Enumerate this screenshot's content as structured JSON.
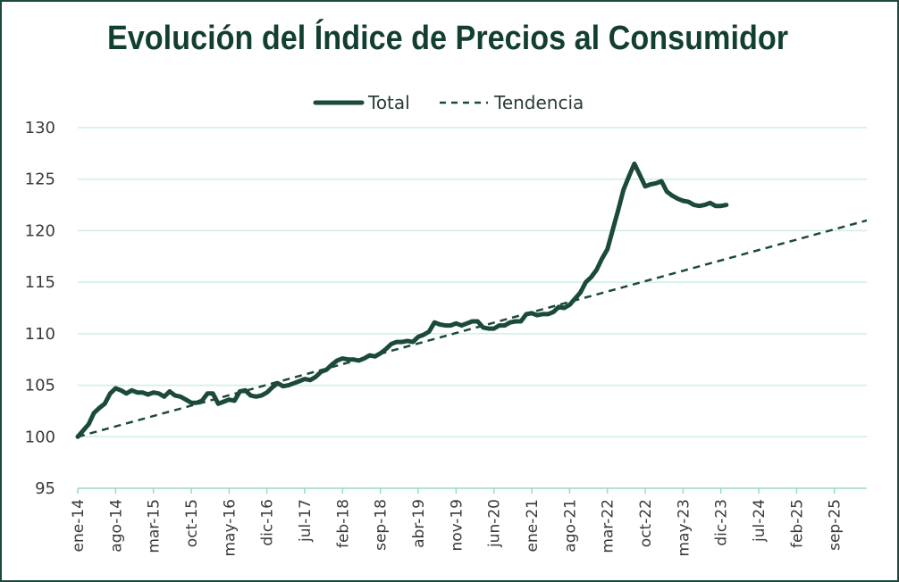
{
  "chart_data": {
    "type": "line",
    "title": "Evolución del Índice de Precios al Consumidor",
    "xlabel": "",
    "ylabel": "",
    "ylim": [
      95,
      130
    ],
    "yticks": [
      95,
      100,
      105,
      110,
      115,
      120,
      125,
      130
    ],
    "grid": true,
    "legend_position": "top-center",
    "x_tick_labels": [
      "ene-14",
      "ago-14",
      "mar-15",
      "oct-15",
      "may-16",
      "dic-16",
      "jul-17",
      "feb-18",
      "sep-18",
      "abr-19",
      "nov-19",
      "jun-20",
      "ene-21",
      "ago-21",
      "mar-22",
      "oct-22",
      "may-23",
      "dic-23",
      "jul-24",
      "feb-25",
      "sep-25"
    ],
    "x_months_range": [
      0,
      146
    ],
    "series": [
      {
        "name": "Total",
        "style": "solid",
        "color": "#1b4a3c",
        "points": [
          [
            0,
            100.0
          ],
          [
            1,
            100.6
          ],
          [
            2,
            101.2
          ],
          [
            3,
            102.3
          ],
          [
            4,
            102.8
          ],
          [
            5,
            103.2
          ],
          [
            6,
            104.2
          ],
          [
            7,
            104.7
          ],
          [
            8,
            104.5
          ],
          [
            9,
            104.2
          ],
          [
            10,
            104.5
          ],
          [
            11,
            104.3
          ],
          [
            12,
            104.3
          ],
          [
            13,
            104.1
          ],
          [
            14,
            104.3
          ],
          [
            15,
            104.2
          ],
          [
            16,
            103.9
          ],
          [
            17,
            104.4
          ],
          [
            18,
            104.0
          ],
          [
            19,
            103.9
          ],
          [
            20,
            103.6
          ],
          [
            21,
            103.3
          ],
          [
            22,
            103.3
          ],
          [
            23,
            103.5
          ],
          [
            24,
            104.2
          ],
          [
            25,
            104.2
          ],
          [
            26,
            103.2
          ],
          [
            27,
            103.4
          ],
          [
            28,
            103.6
          ],
          [
            29,
            103.5
          ],
          [
            30,
            104.4
          ],
          [
            31,
            104.5
          ],
          [
            32,
            104.0
          ],
          [
            33,
            103.9
          ],
          [
            34,
            104.0
          ],
          [
            35,
            104.3
          ],
          [
            36,
            104.8
          ],
          [
            37,
            105.2
          ],
          [
            38,
            104.9
          ],
          [
            39,
            105.0
          ],
          [
            40,
            105.2
          ],
          [
            41,
            105.4
          ],
          [
            42,
            105.6
          ],
          [
            43,
            105.5
          ],
          [
            44,
            105.8
          ],
          [
            45,
            106.3
          ],
          [
            46,
            106.5
          ],
          [
            47,
            107.0
          ],
          [
            48,
            107.4
          ],
          [
            49,
            107.6
          ],
          [
            50,
            107.5
          ],
          [
            51,
            107.5
          ],
          [
            52,
            107.4
          ],
          [
            53,
            107.6
          ],
          [
            54,
            107.9
          ],
          [
            55,
            107.8
          ],
          [
            56,
            108.1
          ],
          [
            57,
            108.5
          ],
          [
            58,
            109.0
          ],
          [
            59,
            109.2
          ],
          [
            60,
            109.2
          ],
          [
            61,
            109.3
          ],
          [
            62,
            109.2
          ],
          [
            63,
            109.7
          ],
          [
            64,
            109.9
          ],
          [
            65,
            110.2
          ],
          [
            66,
            111.1
          ],
          [
            67,
            110.9
          ],
          [
            68,
            110.8
          ],
          [
            69,
            110.8
          ],
          [
            70,
            111.0
          ],
          [
            71,
            110.8
          ],
          [
            72,
            111.0
          ],
          [
            73,
            111.2
          ],
          [
            74,
            111.2
          ],
          [
            75,
            110.6
          ],
          [
            76,
            110.5
          ],
          [
            77,
            110.5
          ],
          [
            78,
            110.8
          ],
          [
            79,
            110.8
          ],
          [
            80,
            111.1
          ],
          [
            81,
            111.2
          ],
          [
            82,
            111.2
          ],
          [
            83,
            111.9
          ],
          [
            84,
            112.0
          ],
          [
            85,
            111.8
          ],
          [
            86,
            111.9
          ],
          [
            87,
            111.9
          ],
          [
            88,
            112.1
          ],
          [
            89,
            112.6
          ],
          [
            90,
            112.5
          ],
          [
            91,
            112.8
          ],
          [
            92,
            113.4
          ],
          [
            93,
            114.0
          ],
          [
            94,
            115.0
          ],
          [
            95,
            115.5
          ],
          [
            96,
            116.2
          ],
          [
            97,
            117.3
          ],
          [
            98,
            118.2
          ],
          [
            99,
            120.1
          ],
          [
            100,
            122.0
          ],
          [
            101,
            124.0
          ],
          [
            102,
            125.3
          ],
          [
            103,
            126.5
          ],
          [
            104,
            125.4
          ],
          [
            105,
            124.3
          ],
          [
            106,
            124.5
          ],
          [
            107,
            124.6
          ],
          [
            108,
            124.8
          ],
          [
            109,
            123.8
          ],
          [
            110,
            123.4
          ],
          [
            111,
            123.1
          ],
          [
            112,
            122.9
          ],
          [
            113,
            122.8
          ],
          [
            114,
            122.5
          ],
          [
            115,
            122.4
          ],
          [
            116,
            122.5
          ],
          [
            117,
            122.7
          ],
          [
            118,
            122.4
          ],
          [
            119,
            122.4
          ],
          [
            120,
            122.5
          ]
        ]
      },
      {
        "name": "Tendencia",
        "style": "dashed",
        "color": "#1b4a3c",
        "points": [
          [
            0,
            100.0
          ],
          [
            146,
            121.0
          ]
        ]
      }
    ]
  }
}
